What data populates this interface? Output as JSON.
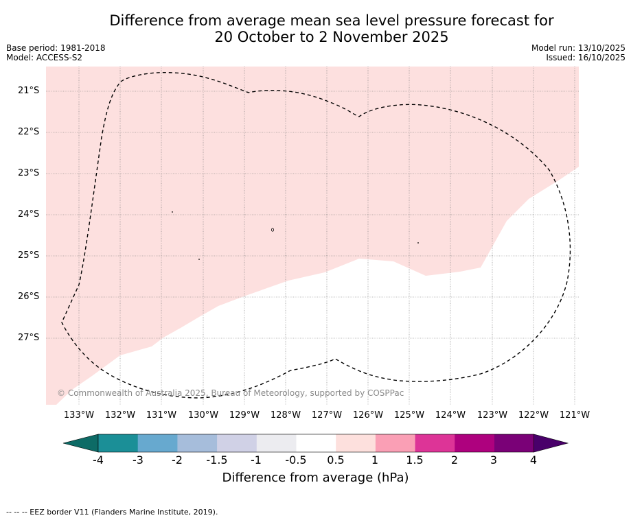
{
  "title": {
    "line1": "Difference from average mean sea level pressure forecast for",
    "line2": "20 October to 2 November 2025"
  },
  "meta": {
    "base_period": "Base period: 1981-2018",
    "model": "Model: ACCESS-S2",
    "model_run": "Model run: 13/10/2025",
    "issued": "Issued: 16/10/2025"
  },
  "map": {
    "fill_color": "#fde0df",
    "lat_labels": [
      "21°S",
      "22°S",
      "23°S",
      "24°S",
      "25°S",
      "26°S",
      "27°S"
    ],
    "lon_labels": [
      "133°W",
      "132°W",
      "131°W",
      "130°W",
      "129°W",
      "128°W",
      "127°W",
      "126°W",
      "125°W",
      "124°W",
      "123°W",
      "122°W",
      "121°W"
    ],
    "copyright": "© Commonwealth of Australia 2025, Bureau of Meteorology, supported by COSPPac"
  },
  "colorbar": {
    "colors": [
      "#0d6b66",
      "#1b8f97",
      "#67a9cf",
      "#a6bddb",
      "#d0d1e6",
      "#ececf0",
      "#ffffff",
      "#fde0dd",
      "#fa9fb5",
      "#dd3497",
      "#ae017e",
      "#7a0177",
      "#49006a"
    ],
    "tick_labels": [
      "-4",
      "-3",
      "-2",
      "-1.5",
      "-1",
      "-0.5",
      "0.5",
      "1",
      "1.5",
      "2",
      "3",
      "4"
    ],
    "label": "Difference from average (hPa)"
  },
  "footnote": "--  --  -- EEZ border V11 (Flanders Marine Institute, 2019)."
}
